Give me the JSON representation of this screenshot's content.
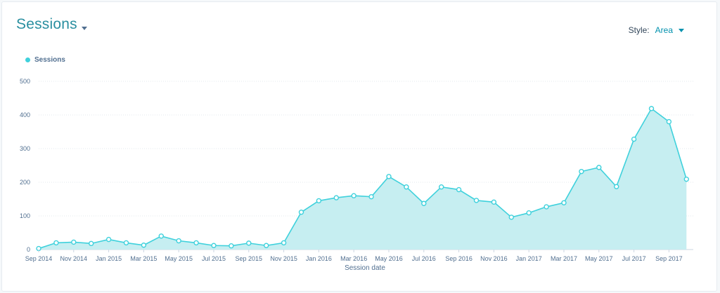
{
  "header": {
    "title": "Sessions"
  },
  "style_selector": {
    "label": "Style:",
    "value": "Area"
  },
  "colors": {
    "series_line": "#3fd1dc",
    "series_fill": "#c6eef1",
    "grid": "#e3e8ee",
    "accent": "#0091ae"
  },
  "chart_data": {
    "type": "area",
    "legend": "Sessions",
    "xlabel": "Session date",
    "ylabel": "",
    "ylim": [
      0,
      500
    ],
    "yticks": [
      0,
      100,
      200,
      300,
      400,
      500
    ],
    "grid": true,
    "legend_position": "top-left",
    "x": [
      "Sep 2014",
      "Oct 2014",
      "Nov 2014",
      "Dec 2014",
      "Jan 2015",
      "Feb 2015",
      "Mar 2015",
      "Apr 2015",
      "May 2015",
      "Jun 2015",
      "Jul 2015",
      "Aug 2015",
      "Sep 2015",
      "Oct 2015",
      "Nov 2015",
      "Dec 2015",
      "Jan 2016",
      "Feb 2016",
      "Mar 2016",
      "Apr 2016",
      "May 2016",
      "Jun 2016",
      "Jul 2016",
      "Aug 2016",
      "Sep 2016",
      "Oct 2016",
      "Nov 2016",
      "Dec 2016",
      "Jan 2017",
      "Feb 2017",
      "Mar 2017",
      "Apr 2017",
      "May 2017",
      "Jun 2017",
      "Jul 2017",
      "Aug 2017",
      "Sep 2017",
      "Oct 2017"
    ],
    "xtick_labels": [
      "Sep 2014",
      "Nov 2014",
      "Jan 2015",
      "Mar 2015",
      "May 2015",
      "Jul 2015",
      "Sep 2015",
      "Nov 2015",
      "Jan 2016",
      "Mar 2016",
      "May 2016",
      "Jul 2016",
      "Sep 2016",
      "Nov 2016",
      "Jan 2017",
      "Mar 2017",
      "May 2017",
      "Jul 2017",
      "Sep 2017"
    ],
    "series": [
      {
        "name": "Sessions",
        "values": [
          3,
          20,
          22,
          18,
          30,
          20,
          13,
          40,
          26,
          20,
          12,
          11,
          19,
          12,
          20,
          111,
          145,
          154,
          160,
          157,
          217,
          186,
          137,
          186,
          178,
          146,
          141,
          96,
          109,
          127,
          139,
          232,
          244,
          187,
          328,
          419,
          380,
          209
        ]
      }
    ]
  }
}
